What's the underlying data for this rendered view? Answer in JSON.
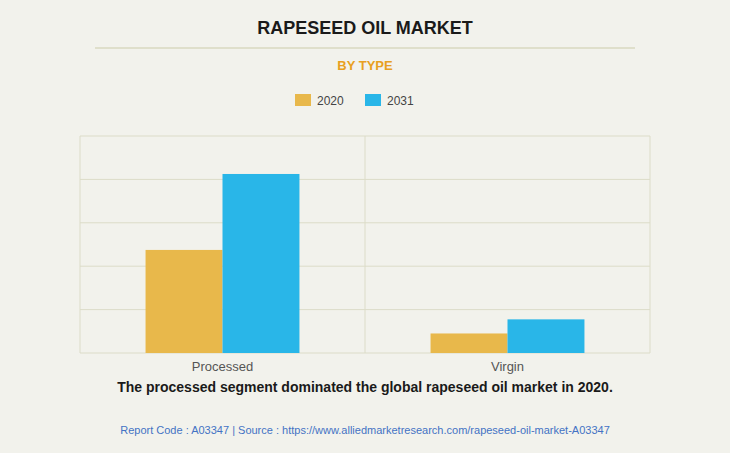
{
  "chart_data": {
    "type": "bar",
    "title": "RAPESEED OIL MARKET",
    "subtitle": "BY TYPE",
    "categories": [
      "Processed",
      "Virgin"
    ],
    "series": [
      {
        "name": "2020",
        "color": "#E8B84B",
        "values": [
          9.5,
          1.8
        ]
      },
      {
        "name": "2031",
        "color": "#29B6E8",
        "values": [
          16.5,
          3.1
        ]
      }
    ],
    "ylim": [
      0,
      20
    ],
    "yticks": [
      0,
      4,
      8,
      12,
      16,
      20
    ],
    "grid": true,
    "legend": "top",
    "tick_labels": "x",
    "annotations": [
      "The processed segment dominated the global rapeseed oil market in 2020.",
      "Report Code : A03347  |  Source : https://www.alliedmarketresearch.com/rapeseed-oil-market-A03347"
    ]
  }
}
